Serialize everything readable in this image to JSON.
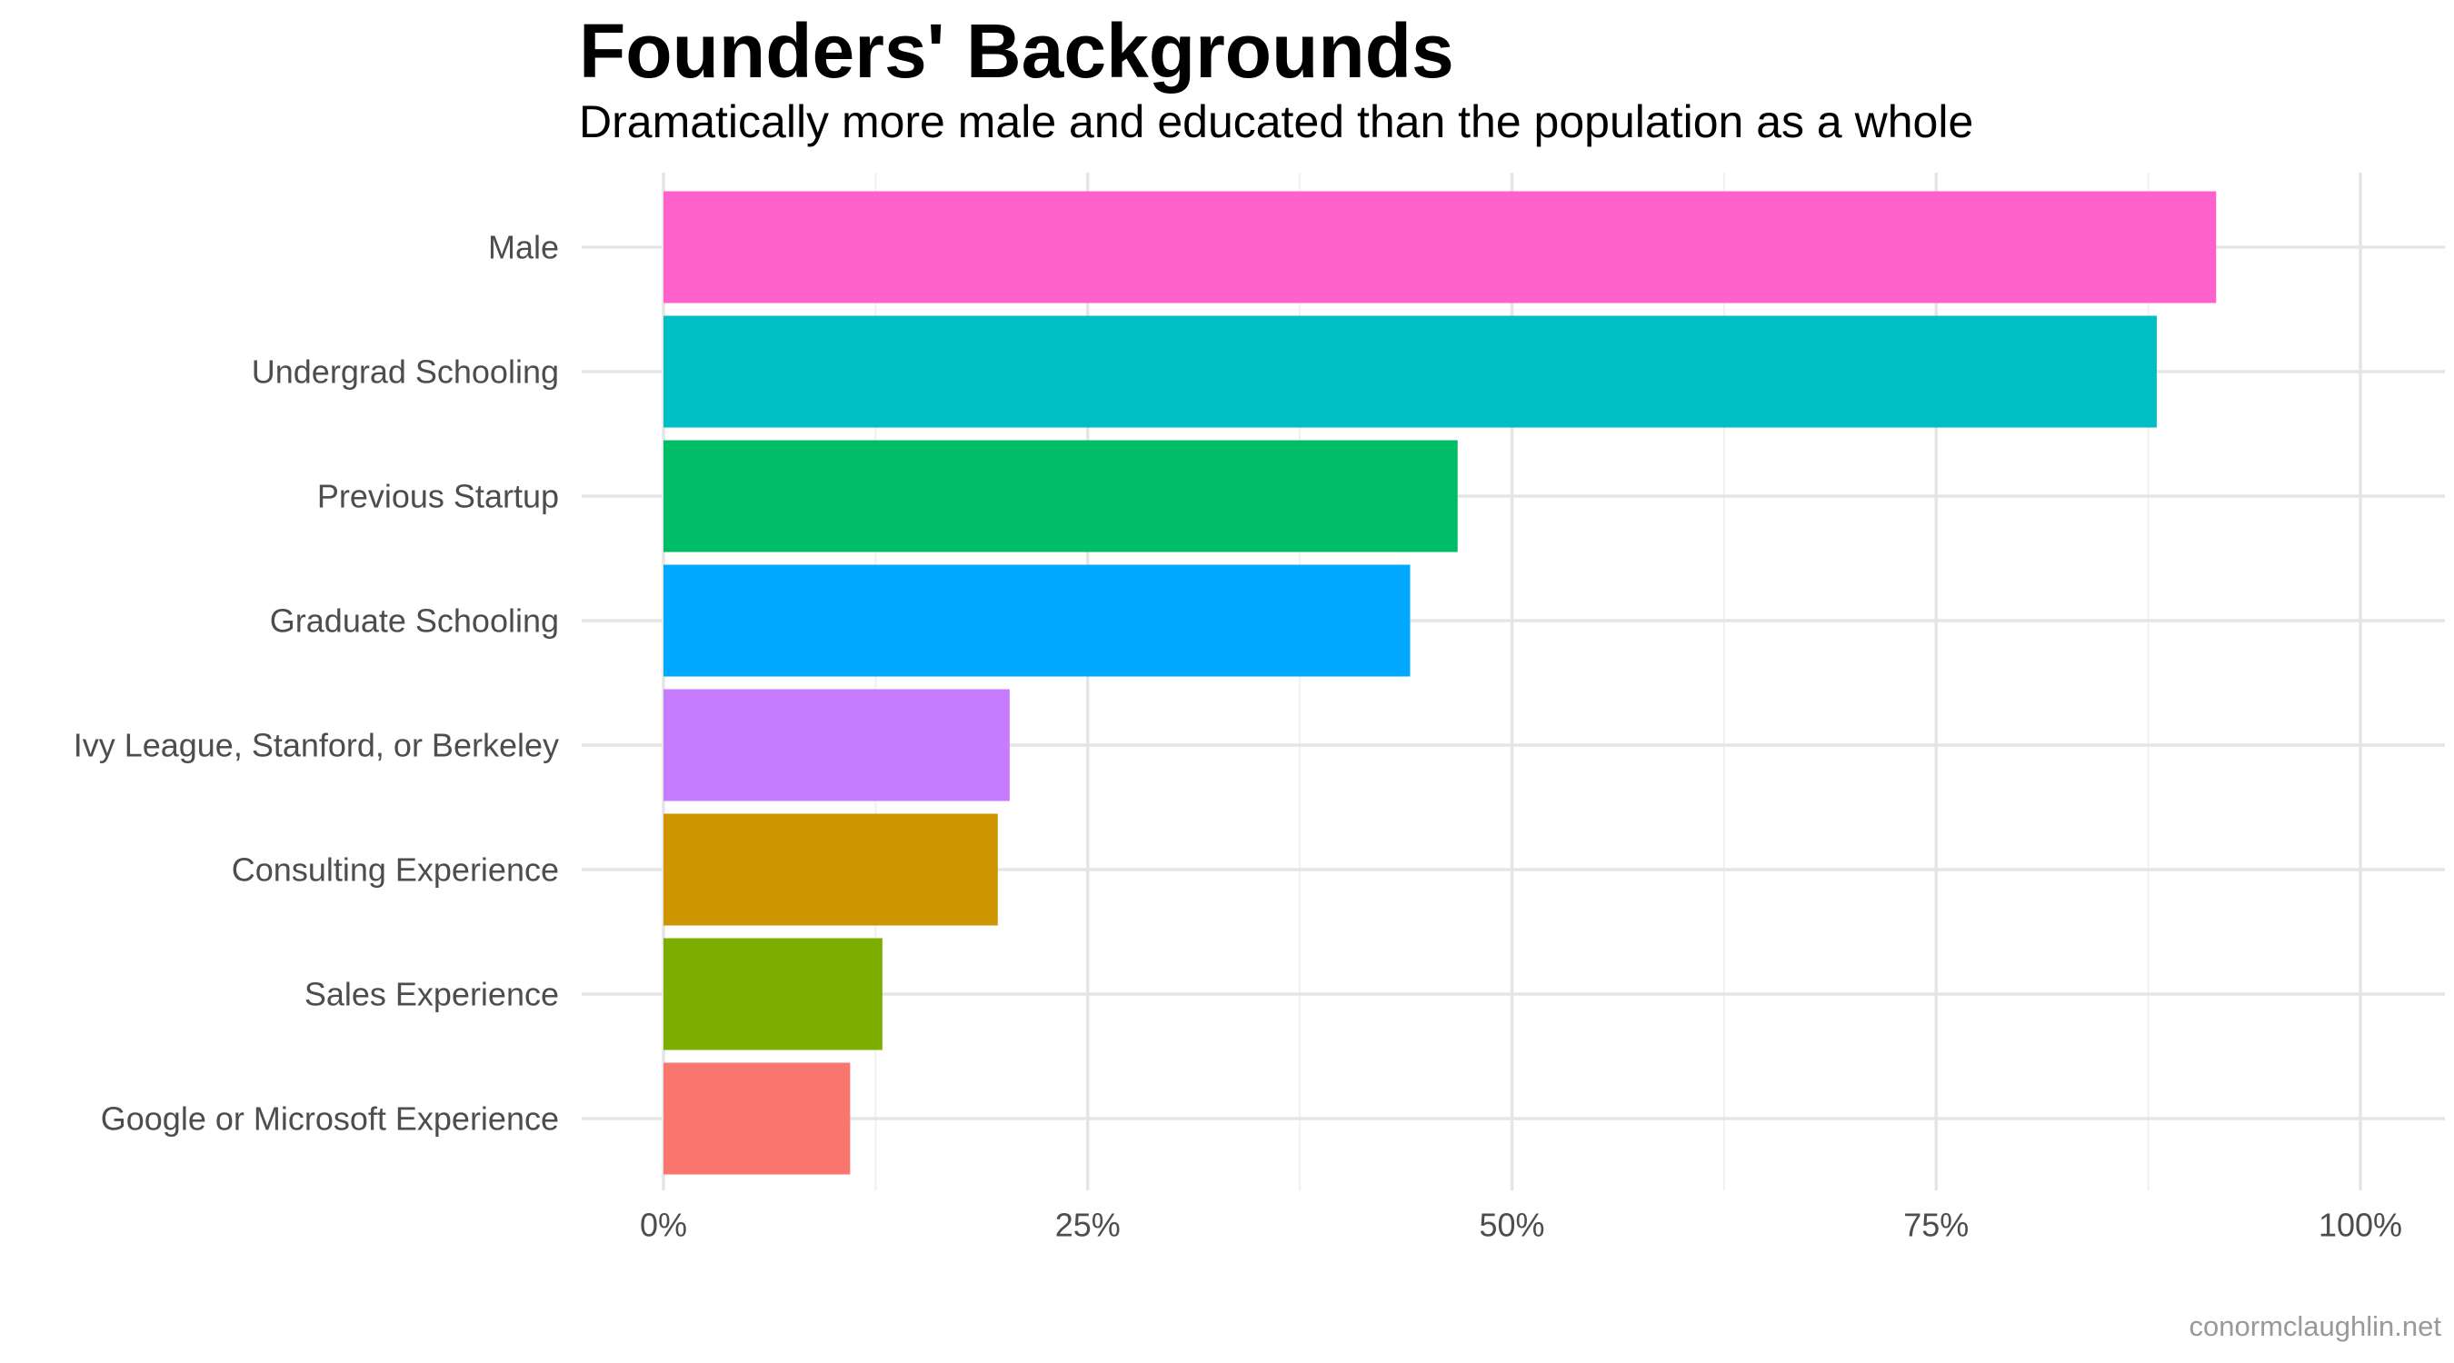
{
  "chart_data": {
    "type": "bar",
    "orientation": "horizontal",
    "title": "Founders' Backgrounds",
    "subtitle": "Dramatically more male and educated than the population as a whole",
    "caption": "conormclaughlin.net",
    "xlabel": "",
    "ylabel": "",
    "categories": [
      "Male",
      "Undergrad Schooling",
      "Previous Startup",
      "Graduate Schooling",
      "Ivy League, Stanford, or Berkeley",
      "Consulting Experience",
      "Sales Experience",
      "Google or Microsoft Experience"
    ],
    "values": [
      91.5,
      88.0,
      46.8,
      44.0,
      20.4,
      19.7,
      12.9,
      11.0
    ],
    "colors": [
      "#FF61CC",
      "#00BFC4",
      "#00BE67",
      "#00A9FF",
      "#C77CFF",
      "#CD9600",
      "#7CAE00",
      "#F8766D"
    ],
    "xlim": [
      0,
      100
    ],
    "x_ticks": [
      0,
      25,
      50,
      75,
      100
    ],
    "x_tick_labels": [
      "0%",
      "25%",
      "50%",
      "75%",
      "100%"
    ],
    "grid": true,
    "legend": "none"
  }
}
